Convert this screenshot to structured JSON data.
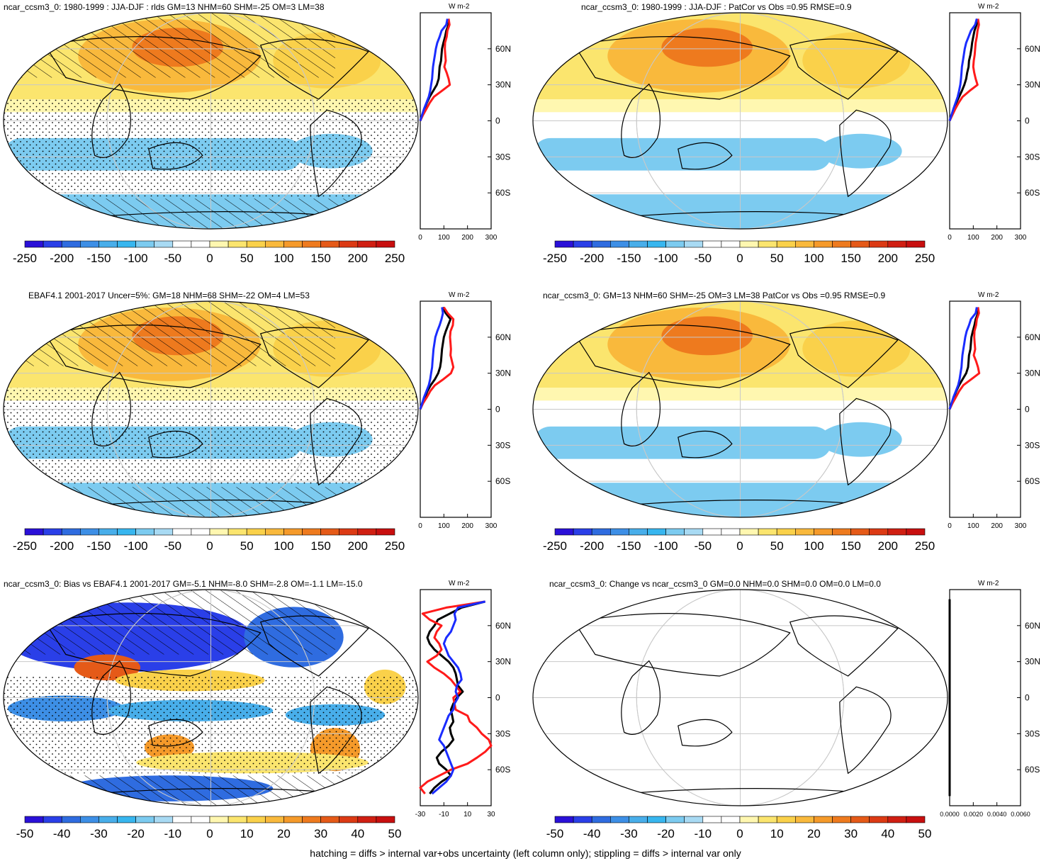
{
  "footer": "hatching = diffs > internal var+obs uncertainty (left column only); stippling = diffs > internal var only",
  "colors": {
    "ramp": [
      "#2a10d8",
      "#2a3fe8",
      "#2f6ce0",
      "#3d8fe6",
      "#48aeea",
      "#37b6ef",
      "#7ccbf0",
      "#a8daf3",
      "#ffffff",
      "#ffffff",
      "#fff7b0",
      "#fbe56e",
      "#fad14a",
      "#f9b93c",
      "#f59a2a",
      "#ee7a1e",
      "#e55a18",
      "#dc3a14",
      "#d01f12",
      "#c80f0f"
    ],
    "model_line": "#000000",
    "nh_line": "#ff1a1a",
    "sh_line": "#1a2cff",
    "grid": "#c8c8c8"
  },
  "chart_data": [
    {
      "type": "heatmap",
      "title": "ncar_ccsm3_0: 1980-1999 : JJA-DJF : rlds GM=13 NHM=60 SHM=-25 OM=3 LM=38",
      "colorbar_ticks": [
        "-250",
        "-200",
        "-150",
        "-100",
        "-50",
        "0",
        "50",
        "100",
        "150",
        "200",
        "250"
      ],
      "profile_unit": "W m-2",
      "profile_xticks": [
        "0",
        "100",
        "200",
        "300"
      ],
      "lat_ticks": [
        "60N",
        "30N",
        "0",
        "30S",
        "60S"
      ],
      "lat_values": [
        60,
        30,
        0,
        -30,
        -60
      ],
      "profile_xlim": [
        0,
        300
      ],
      "profile_lat": [
        85,
        80,
        75,
        70,
        65,
        60,
        55,
        50,
        45,
        40,
        35,
        30,
        25,
        20,
        15,
        10,
        5,
        0
      ],
      "profile_series": [
        {
          "values": [
            118,
            120,
            110,
            105,
            98,
            92,
            90,
            88,
            82,
            80,
            78,
            70,
            55,
            40,
            28,
            18,
            8,
            0
          ]
        },
        {
          "values": [
            120,
            124,
            115,
            112,
            105,
            104,
            106,
            108,
            102,
            112,
            120,
            125,
            92,
            58,
            40,
            26,
            12,
            0
          ]
        },
        {
          "values": [
            115,
            110,
            90,
            82,
            72,
            66,
            62,
            58,
            54,
            52,
            50,
            46,
            42,
            36,
            26,
            16,
            8,
            0
          ]
        }
      ],
      "hatched": true
    },
    {
      "type": "heatmap",
      "title": "ncar_ccsm3_0: 1980-1999 : JJA-DJF : PatCor vs Obs =0.95 RMSE=0.9",
      "colorbar_ticks": [
        "-250",
        "-200",
        "-150",
        "-100",
        "-50",
        "0",
        "50",
        "100",
        "150",
        "200",
        "250"
      ],
      "profile_unit": "W m-2",
      "profile_xticks": [
        "0",
        "100",
        "200",
        "300"
      ],
      "lat_ticks": [
        "60N",
        "30N",
        "0",
        "30S",
        "60S"
      ],
      "lat_values": [
        60,
        30,
        0,
        -30,
        -60
      ],
      "profile_xlim": [
        0,
        300
      ],
      "profile_lat": [
        85,
        80,
        75,
        70,
        65,
        60,
        55,
        50,
        45,
        40,
        35,
        30,
        25,
        20,
        15,
        10,
        5,
        0
      ],
      "profile_series": [
        {
          "values": [
            118,
            114,
            105,
            100,
            95,
            92,
            88,
            82,
            80,
            74,
            70,
            62,
            52,
            40,
            28,
            18,
            8,
            0
          ]
        },
        {
          "values": [
            120,
            124,
            118,
            115,
            110,
            108,
            106,
            102,
            100,
            104,
            110,
            118,
            85,
            55,
            38,
            24,
            12,
            0
          ]
        },
        {
          "values": [
            115,
            108,
            90,
            80,
            70,
            64,
            60,
            56,
            52,
            50,
            48,
            45,
            40,
            34,
            25,
            16,
            8,
            0
          ]
        }
      ],
      "hatched": false
    },
    {
      "type": "heatmap",
      "title": "EBAF4.1 2001-2017 Uncer=5%: GM=18 NHM=68 SHM=-22 OM=4 LM=53",
      "colorbar_ticks": [
        "-250",
        "-200",
        "-150",
        "-100",
        "-50",
        "0",
        "50",
        "100",
        "150",
        "200",
        "250"
      ],
      "profile_unit": "W m-2",
      "profile_xticks": [
        "0",
        "100",
        "200",
        "300"
      ],
      "lat_ticks": [
        "60N",
        "30N",
        "0",
        "30S",
        "60S"
      ],
      "lat_values": [
        60,
        30,
        0,
        -30,
        -60
      ],
      "profile_xlim": [
        0,
        300
      ],
      "profile_lat": [
        85,
        80,
        75,
        70,
        65,
        60,
        55,
        50,
        45,
        40,
        35,
        30,
        25,
        20,
        15,
        10,
        5,
        0
      ],
      "profile_series": [
        {
          "values": [
            95,
            108,
            128,
            118,
            108,
            100,
            96,
            92,
            90,
            88,
            84,
            76,
            62,
            44,
            30,
            20,
            8,
            0
          ]
        },
        {
          "values": [
            100,
            116,
            140,
            138,
            128,
            126,
            128,
            130,
            128,
            134,
            140,
            130,
            98,
            62,
            42,
            28,
            12,
            0
          ]
        },
        {
          "values": [
            92,
            96,
            90,
            82,
            72,
            64,
            60,
            56,
            54,
            52,
            50,
            46,
            42,
            36,
            26,
            16,
            8,
            0
          ]
        }
      ],
      "hatched": true
    },
    {
      "type": "heatmap",
      "title": "ncar_ccsm3_0: GM=13 NHM=60 SHM=-25 OM=3 LM=38 PatCor vs Obs =0.95 RMSE=0.9",
      "colorbar_ticks": [
        "-250",
        "-200",
        "-150",
        "-100",
        "-50",
        "0",
        "50",
        "100",
        "150",
        "200",
        "250"
      ],
      "profile_unit": "W m-2",
      "profile_xticks": [
        "0",
        "100",
        "200",
        "300"
      ],
      "lat_ticks": [
        "60N",
        "30N",
        "0",
        "30S",
        "60S"
      ],
      "lat_values": [
        60,
        30,
        0,
        -30,
        -60
      ],
      "profile_xlim": [
        0,
        300
      ],
      "profile_lat": [
        85,
        80,
        75,
        70,
        65,
        60,
        55,
        50,
        45,
        40,
        35,
        30,
        25,
        20,
        15,
        10,
        5,
        0
      ],
      "profile_series": [
        {
          "values": [
            118,
            120,
            110,
            105,
            98,
            92,
            90,
            88,
            82,
            80,
            78,
            70,
            55,
            40,
            28,
            18,
            8,
            0
          ]
        },
        {
          "values": [
            120,
            124,
            115,
            112,
            105,
            104,
            106,
            108,
            102,
            112,
            120,
            125,
            92,
            58,
            40,
            26,
            12,
            0
          ]
        },
        {
          "values": [
            115,
            110,
            90,
            82,
            72,
            66,
            62,
            58,
            54,
            52,
            50,
            46,
            42,
            36,
            26,
            16,
            8,
            0
          ]
        }
      ],
      "hatched": false
    },
    {
      "type": "heatmap",
      "title": "ncar_ccsm3_0: Bias vs EBAF4.1 2001-2017 GM=-5.1 NHM=-8.0 SHM=-2.8 OM=-1.1 LM=-15.0",
      "colorbar_ticks": [
        "-50",
        "-40",
        "-30",
        "-20",
        "-10",
        "0",
        "10",
        "20",
        "30",
        "40",
        "50"
      ],
      "profile_unit": "W m-2",
      "profile_xticks": [
        "-30",
        "-10",
        "10",
        "30"
      ],
      "lat_ticks": [
        "60N",
        "30N",
        "0",
        "30S",
        "60S"
      ],
      "lat_values": [
        60,
        30,
        0,
        -30,
        -60
      ],
      "profile_xlim": [
        -30,
        30
      ],
      "profile_lat": [
        80,
        75,
        70,
        65,
        60,
        55,
        50,
        45,
        40,
        35,
        30,
        25,
        20,
        15,
        10,
        5,
        0,
        -5,
        -10,
        -15,
        -20,
        -25,
        -30,
        -35,
        -40,
        -45,
        -50,
        -55,
        -60,
        -65,
        -70,
        -75,
        -80
      ],
      "profile_series": [
        {
          "values": [
            25,
            5,
            -5,
            -15,
            -18,
            -22,
            -24,
            -22,
            -18,
            -12,
            -6,
            -2,
            0,
            1,
            2,
            6,
            1,
            -2,
            -4,
            -3,
            -2,
            -5,
            -4,
            -2,
            -6,
            -12,
            -16,
            -14,
            -8,
            -4,
            -12,
            -18,
            -22
          ]
        },
        {
          "values": [
            25,
            -8,
            -28,
            -22,
            -12,
            -16,
            -18,
            -14,
            -12,
            -16,
            -24,
            -18,
            -10,
            -4,
            0,
            4,
            -2,
            -1,
            0,
            10,
            12,
            18,
            22,
            28,
            30,
            25,
            18,
            10,
            -4,
            -14,
            -24,
            -30,
            -26
          ]
        },
        {
          "values": [
            25,
            2,
            -1,
            0,
            -2,
            -4,
            -8,
            -10,
            -8,
            -6,
            -2,
            2,
            4,
            5,
            1,
            0,
            2,
            -1,
            -2,
            -6,
            -8,
            -10,
            -12,
            -14,
            -10,
            -8,
            -6,
            -4,
            -2,
            -4,
            -8,
            -14,
            -20
          ]
        }
      ],
      "hatched": true
    },
    {
      "type": "heatmap",
      "title": "ncar_ccsm3_0: Change vs ncar_ccsm3_0 GM=0.0 NHM=0.0 SHM=0.0 OM=0.0 LM=0.0",
      "colorbar_ticks": [
        "-50",
        "-40",
        "-30",
        "-20",
        "-10",
        "0",
        "10",
        "20",
        "30",
        "40",
        "50"
      ],
      "profile_unit": "W m-2",
      "profile_xticks": [
        "0.0000",
        "0.0020",
        "0.0040",
        "0.0060"
      ],
      "lat_ticks": [
        "60N",
        "30N",
        "0",
        "30S",
        "60S"
      ],
      "lat_values": [
        60,
        30,
        0,
        -30,
        -60
      ],
      "profile_xlim": [
        0,
        0.006
      ],
      "profile_lat": [
        82,
        -82
      ],
      "profile_series": [
        {
          "values": [
            0,
            0
          ]
        }
      ],
      "hatched": false
    }
  ]
}
